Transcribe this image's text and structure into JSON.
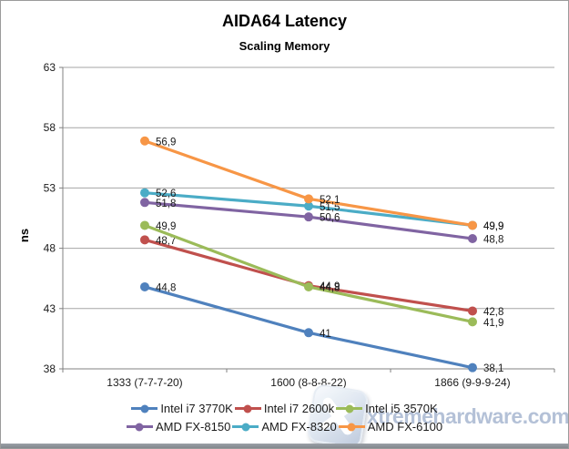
{
  "chart_data": {
    "type": "line",
    "title": "AIDA64 Latency",
    "subtitle": "Scaling Memory",
    "ylabel": "ns",
    "categories": [
      "1333 (7-7-7-20)",
      "1600 (8-8-8-22)",
      "1866 (9-9-9-24)"
    ],
    "y_ticks": [
      63,
      58,
      53,
      48,
      43,
      38
    ],
    "ylim": [
      38,
      63
    ],
    "grid": true,
    "legend_position": "bottom",
    "decimal_separator": ",",
    "series": [
      {
        "name": "Intel i7 3770K",
        "color": "#4F81BD",
        "values": [
          44.8,
          41.0,
          38.1
        ],
        "labels": [
          "44,8",
          "41",
          "38,1"
        ]
      },
      {
        "name": "Intel i7 2600k",
        "color": "#C0504D",
        "values": [
          48.7,
          44.9,
          42.8
        ],
        "labels": [
          "48,7",
          "44,9",
          "42,8"
        ]
      },
      {
        "name": "Intel i5 3570K",
        "color": "#9BBB59",
        "values": [
          49.9,
          44.8,
          41.9
        ],
        "labels": [
          "49,9",
          "44,8",
          "41,9"
        ]
      },
      {
        "name": "AMD FX-8150",
        "color": "#8064A2",
        "values": [
          51.8,
          50.6,
          48.8
        ],
        "labels": [
          "51,8",
          "50,6",
          "48,8"
        ]
      },
      {
        "name": "AMD FX-8320",
        "color": "#4BACC6",
        "values": [
          52.6,
          51.5,
          49.9
        ],
        "labels": [
          "52,6",
          "51,5",
          "49,9"
        ]
      },
      {
        "name": "AMD FX-6100",
        "color": "#F79646",
        "values": [
          56.9,
          52.1,
          49.9
        ],
        "labels": [
          "56,9",
          "52,1",
          "49,9"
        ]
      }
    ],
    "axis_color": "#808080",
    "grid_color": "#A6A6A6",
    "label_color": "#1a1a1a",
    "watermark": {
      "text": "xtremehardware.com"
    }
  }
}
